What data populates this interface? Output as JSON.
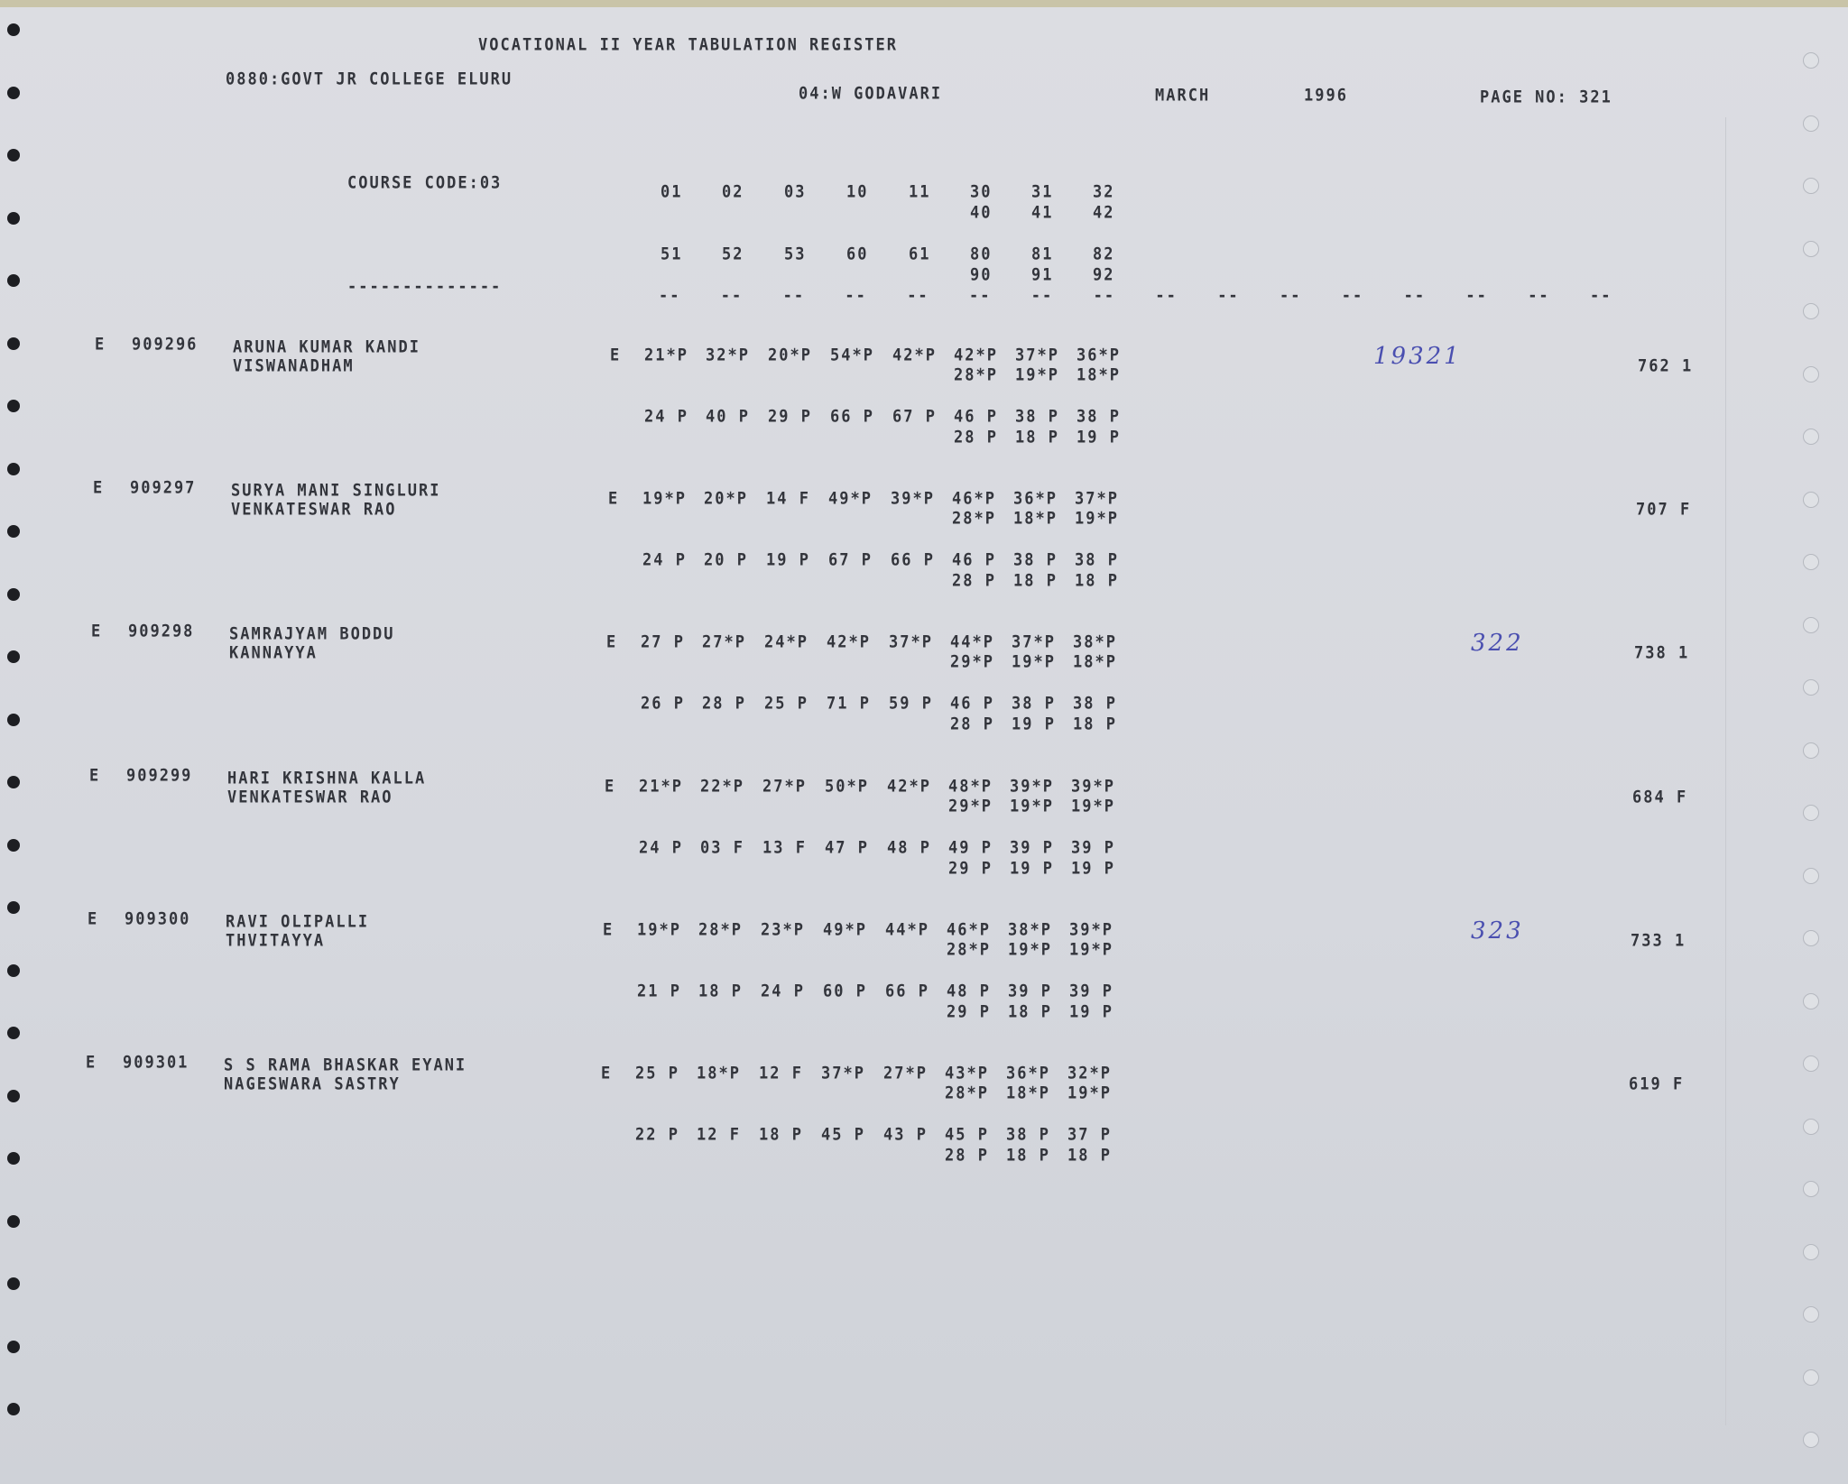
{
  "header": {
    "title": "VOCATIONAL II YEAR TABULATION REGISTER",
    "college": "0880:GOVT JR COLLEGE ELURU",
    "district": "04:W GODAVARI",
    "month": "MARCH",
    "year": "1996",
    "page": "PAGE NO: 321",
    "course_code": "COURSE CODE:03",
    "left_dashes": "--------------",
    "subject_row1": [
      "01",
      "02",
      "03",
      "10",
      "11",
      "30",
      "31",
      "32"
    ],
    "subject_row1b": [
      "40",
      "41",
      "42"
    ],
    "subject_row2": [
      "51",
      "52",
      "53",
      "60",
      "61",
      "80",
      "81",
      "82"
    ],
    "subject_row2b": [
      "90",
      "91",
      "92"
    ],
    "dash": "--"
  },
  "records": [
    {
      "flag": "E",
      "roll": "909296",
      "name": "ARUNA KUMAR KANDI",
      "father": "VISWANADHAM",
      "mark_flag": "E",
      "marks1": [
        "21*P",
        "32*P",
        "20*P",
        "54*P",
        "42*P",
        "42*P",
        "37*P",
        "36*P"
      ],
      "marks1b": [
        "28*P",
        "19*P",
        "18*P"
      ],
      "marks2": [
        "24 P",
        "40 P",
        "29 P",
        "66 P",
        "67 P",
        "46 P",
        "38 P",
        "38 P"
      ],
      "marks2b": [
        "28 P",
        "18 P",
        "19 P"
      ],
      "total": "762 1",
      "note": "19321"
    },
    {
      "flag": "E",
      "roll": "909297",
      "name": "SURYA MANI SINGLURI",
      "father": "VENKATESWAR RAO",
      "mark_flag": "E",
      "marks1": [
        "19*P",
        "20*P",
        "14 F",
        "49*P",
        "39*P",
        "46*P",
        "36*P",
        "37*P"
      ],
      "marks1b": [
        "28*P",
        "18*P",
        "19*P"
      ],
      "marks2": [
        "24 P",
        "20 P",
        "19 P",
        "67 P",
        "66 P",
        "46 P",
        "38 P",
        "38 P"
      ],
      "marks2b": [
        "28 P",
        "18 P",
        "18 P"
      ],
      "total": "707 F",
      "note": ""
    },
    {
      "flag": "E",
      "roll": "909298",
      "name": "SAMRAJYAM BODDU",
      "father": "KANNAYYA",
      "mark_flag": "E",
      "marks1": [
        "27 P",
        "27*P",
        "24*P",
        "42*P",
        "37*P",
        "44*P",
        "37*P",
        "38*P"
      ],
      "marks1b": [
        "29*P",
        "19*P",
        "18*P"
      ],
      "marks2": [
        "26 P",
        "28 P",
        "25 P",
        "71 P",
        "59 P",
        "46 P",
        "38 P",
        "38 P"
      ],
      "marks2b": [
        "28 P",
        "19 P",
        "18 P"
      ],
      "total": "738 1",
      "note": "322"
    },
    {
      "flag": "E",
      "roll": "909299",
      "name": "HARI KRISHNA KALLA",
      "father": "VENKATESWAR RAO",
      "mark_flag": "E",
      "marks1": [
        "21*P",
        "22*P",
        "27*P",
        "50*P",
        "42*P",
        "48*P",
        "39*P",
        "39*P"
      ],
      "marks1b": [
        "29*P",
        "19*P",
        "19*P"
      ],
      "marks2": [
        "24 P",
        "03 F",
        "13 F",
        "47 P",
        "48 P",
        "49 P",
        "39 P",
        "39 P"
      ],
      "marks2b": [
        "29 P",
        "19 P",
        "19 P"
      ],
      "total": "684 F",
      "note": ""
    },
    {
      "flag": "E",
      "roll": "909300",
      "name": "RAVI OLIPALLI",
      "father": "THVITAYYA",
      "mark_flag": "E",
      "marks1": [
        "19*P",
        "28*P",
        "23*P",
        "49*P",
        "44*P",
        "46*P",
        "38*P",
        "39*P"
      ],
      "marks1b": [
        "28*P",
        "19*P",
        "19*P"
      ],
      "marks2": [
        "21 P",
        "18 P",
        "24 P",
        "60 P",
        "66 P",
        "48 P",
        "39 P",
        "39 P"
      ],
      "marks2b": [
        "29 P",
        "18 P",
        "19 P"
      ],
      "total": "733 1",
      "note": "323"
    },
    {
      "flag": "E",
      "roll": "909301",
      "name": "S S RAMA BHASKAR EYANI",
      "father": "NAGESWARA SASTRY",
      "mark_flag": "E",
      "marks1": [
        "25 P",
        "18*P",
        "12 F",
        "37*P",
        "27*P",
        "43*P",
        "36*P",
        "32*P"
      ],
      "marks1b": [
        "28*P",
        "18*P",
        "19*P"
      ],
      "marks2": [
        "22 P",
        "12 F",
        "18 P",
        "45 P",
        "43 P",
        "45 P",
        "38 P",
        "37 P"
      ],
      "marks2b": [
        "28 P",
        "18 P",
        "18 P"
      ],
      "total": "619 F",
      "note": ""
    }
  ]
}
